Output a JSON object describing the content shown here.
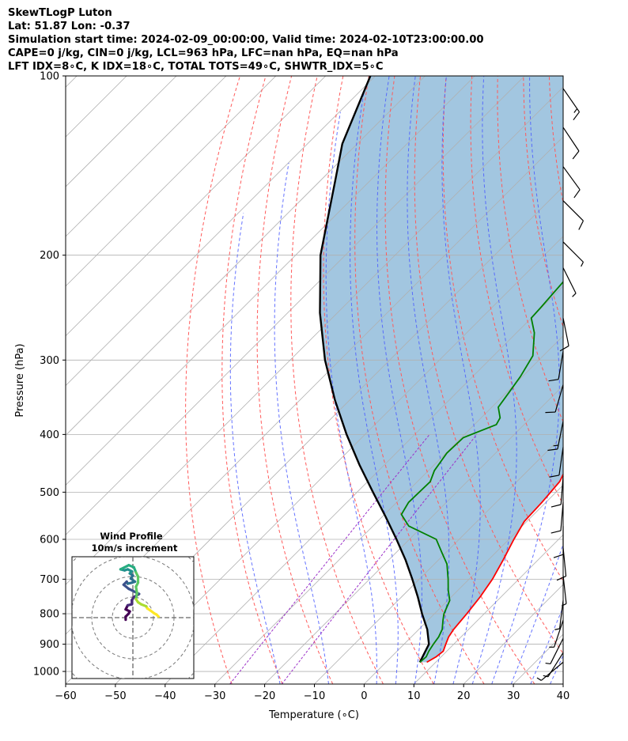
{
  "header": {
    "line1": "SkewTLogP Luton",
    "line2": "Lat: 51.87   Lon: -0.37",
    "line3": "Simulation start time: 2024-02-09_00:00:00, Valid time: 2024-02-10T23:00:00.00",
    "line4": "CAPE=0 j/kg, CIN=0 j/kg, LCL=963 hPa, LFC=nan hPa, EQ=nan hPa",
    "line5": "LFT IDX=8∘C, K IDX=18∘C, TOTAL TOTS=49∘C, SHWTR_IDX=5∘C"
  },
  "colors": {
    "temperature": "#ff0000",
    "dewpoint": "#008000",
    "parcel": "#000000",
    "cape_fill": "#a2c6e0",
    "dry_adiabat": "#ff5a5a",
    "moist_adiabat": "#4a5aff",
    "mixing_ratio": "#9b30c8",
    "isotherm": "#b0b0b0"
  },
  "chart_data": [
    {
      "type": "line",
      "subtype": "skew-t log-p",
      "xlabel": "Temperature (∘C)",
      "ylabel": "Pressure (hPa)",
      "xlim": [
        -60,
        40
      ],
      "ylim": [
        1050,
        100
      ],
      "y_scale": "log",
      "x_ticks": [
        "−60",
        "−50",
        "−40",
        "−30",
        "−20",
        "−10",
        "0",
        "10",
        "20",
        "30",
        "40"
      ],
      "y_ticks": [
        "100",
        "200",
        "300",
        "400",
        "500",
        "600",
        "700",
        "800",
        "900",
        "1000"
      ],
      "grid": true,
      "series": [
        {
          "key": "temperature",
          "points": [
            [
              8.2,
              965
            ],
            [
              9.0,
              945
            ],
            [
              9.3,
              925
            ],
            [
              8.4,
              900
            ],
            [
              7.5,
              875
            ],
            [
              7.0,
              850
            ],
            [
              6.5,
              800
            ],
            [
              5.8,
              750
            ],
            [
              4.7,
              700
            ],
            [
              3.0,
              650
            ],
            [
              1.0,
              600
            ],
            [
              -0.5,
              560
            ],
            [
              -0.8,
              520
            ],
            [
              -1.4,
              480
            ],
            [
              -3.1,
              450
            ],
            [
              -6.0,
              420
            ],
            [
              -7.3,
              400
            ],
            [
              -8.8,
              380
            ],
            [
              -15.5,
              320
            ],
            [
              -15.6,
              300
            ],
            [
              -15.0,
              290
            ],
            [
              -13.5,
              275
            ],
            [
              -13.0,
              265
            ],
            [
              -10.6,
              250
            ],
            [
              -8.8,
              235
            ],
            [
              -6.6,
              220
            ],
            [
              -5.2,
              210
            ],
            [
              -5.0,
              204
            ],
            [
              -3.7,
              193
            ],
            [
              -1.2,
              182
            ],
            [
              -0.8,
              175
            ],
            [
              0.4,
              170
            ],
            [
              2.3,
              160
            ],
            [
              6.4,
              140
            ],
            [
              7.7,
              130
            ],
            [
              9.2,
              120
            ],
            [
              11.4,
              110
            ],
            [
              12.5,
              105
            ],
            [
              13.4,
              100
            ]
          ]
        },
        {
          "key": "dewpoint",
          "points": [
            [
              6.8,
              965
            ],
            [
              7.0,
              945
            ],
            [
              6.4,
              925
            ],
            [
              5.9,
              900
            ],
            [
              5.5,
              875
            ],
            [
              4.7,
              850
            ],
            [
              3.0,
              820
            ],
            [
              1.9,
              800
            ],
            [
              0.4,
              760
            ],
            [
              -2.0,
              730
            ],
            [
              -4.2,
              700
            ],
            [
              -7.5,
              660
            ],
            [
              -11.0,
              630
            ],
            [
              -14.6,
              600
            ],
            [
              -22.8,
              570
            ],
            [
              -26.6,
              545
            ],
            [
              -27.6,
              520
            ],
            [
              -27.4,
              480
            ],
            [
              -28.8,
              460
            ],
            [
              -29.8,
              430
            ],
            [
              -29.6,
              405
            ],
            [
              -25.6,
              385
            ],
            [
              -26.2,
              375
            ],
            [
              -28.7,
              360
            ],
            [
              -29.5,
              340
            ],
            [
              -30.4,
              320
            ],
            [
              -32.1,
              295
            ],
            [
              -36.4,
              270
            ],
            [
              -40.0,
              255
            ],
            [
              -40.2,
              245
            ],
            [
              -40.9,
              220
            ],
            [
              -40.5,
              205
            ],
            [
              -39.6,
              195
            ],
            [
              -38.9,
              180
            ],
            [
              -37.5,
              170
            ],
            [
              -35.8,
              160
            ],
            [
              -26.5,
              120
            ],
            [
              -21.3,
              100
            ]
          ]
        },
        {
          "key": "parcel",
          "points": [
            [
              6.8,
              965
            ],
            [
              5.0,
              900
            ],
            [
              1.7,
              850
            ],
            [
              -2.5,
              800
            ],
            [
              -6.7,
              750
            ],
            [
              -11.4,
              700
            ],
            [
              -16.6,
              650
            ],
            [
              -22.6,
              600
            ],
            [
              -29.3,
              550
            ],
            [
              -36.8,
              500
            ],
            [
              -45.0,
              450
            ],
            [
              -53.7,
              400
            ],
            [
              -63.0,
              350
            ],
            [
              -73.0,
              300
            ],
            [
              -83.5,
              250
            ],
            [
              -95.0,
              200
            ],
            [
              -107.0,
              150
            ],
            [
              -113.0,
              130
            ],
            [
              -121.0,
              100
            ]
          ]
        }
      ]
    },
    {
      "type": "line",
      "subtype": "hodograph",
      "title": "Wind Profile",
      "subtitle": "10m/s increment",
      "ring_increment": 10,
      "colormap": "viridis",
      "points": [
        [
          -3.5,
          -1.0
        ],
        [
          -3.5,
          0.5
        ],
        [
          -2.0,
          2.0
        ],
        [
          -1.5,
          3.0
        ],
        [
          -3.5,
          4.0
        ],
        [
          -2.5,
          6.0
        ],
        [
          -0.5,
          6.5
        ],
        [
          -0.5,
          8.5
        ],
        [
          0.5,
          10.0
        ],
        [
          3.0,
          11.5
        ],
        [
          -2.0,
          14.0
        ],
        [
          -4.5,
          16.0
        ],
        [
          -3.0,
          17.5
        ],
        [
          -2.5,
          16.5
        ],
        [
          -0.5,
          17.0
        ],
        [
          1.0,
          17.5
        ],
        [
          -1.0,
          19.0
        ],
        [
          0.0,
          20.5
        ],
        [
          -1.5,
          21.5
        ],
        [
          -0.5,
          22.5
        ],
        [
          -2.5,
          23.5
        ],
        [
          -4.0,
          23.0
        ],
        [
          -6.0,
          23.5
        ],
        [
          -3.0,
          25.0
        ],
        [
          -2.0,
          25.5
        ],
        [
          0.5,
          24.5
        ],
        [
          1.5,
          22.0
        ],
        [
          2.5,
          20.0
        ],
        [
          2.5,
          17.0
        ],
        [
          1.5,
          15.0
        ],
        [
          2.0,
          12.0
        ],
        [
          1.5,
          9.0
        ],
        [
          2.5,
          7.5
        ],
        [
          4.0,
          6.5
        ],
        [
          6.5,
          5.5
        ],
        [
          7.0,
          4.5
        ],
        [
          8.5,
          3.5
        ],
        [
          10.5,
          2.0
        ],
        [
          11.5,
          1.5
        ],
        [
          12.5,
          0.5
        ]
      ]
    }
  ],
  "wind_barbs": [
    {
      "pressure": 105,
      "u": -9,
      "v": 13
    },
    {
      "pressure": 122,
      "u": -8,
      "v": 12
    },
    {
      "pressure": 142,
      "u": -8,
      "v": 11
    },
    {
      "pressure": 162,
      "u": -8,
      "v": 8
    },
    {
      "pressure": 190,
      "u": -6,
      "v": 6
    },
    {
      "pressure": 210,
      "u": -4,
      "v": 8
    },
    {
      "pressure": 255,
      "u": -2,
      "v": 10
    },
    {
      "pressure": 290,
      "u": 2,
      "v": 12
    },
    {
      "pressure": 330,
      "u": 4,
      "v": 14
    },
    {
      "pressure": 380,
      "u": 3,
      "v": 15
    },
    {
      "pressure": 420,
      "u": 2,
      "v": 14
    },
    {
      "pressure": 470,
      "u": 1,
      "v": 13
    },
    {
      "pressure": 520,
      "u": 1,
      "v": 12
    },
    {
      "pressure": 570,
      "u": 0,
      "v": 11
    },
    {
      "pressure": 620,
      "u": -1,
      "v": 10
    },
    {
      "pressure": 690,
      "u": -1,
      "v": 9
    },
    {
      "pressure": 760,
      "u": 1,
      "v": 8
    },
    {
      "pressure": 820,
      "u": 3,
      "v": 9
    },
    {
      "pressure": 880,
      "u": 4,
      "v": 8
    },
    {
      "pressure": 930,
      "u": 5,
      "v": 8
    },
    {
      "pressure": 965,
      "u": 6,
      "v": 5
    }
  ]
}
